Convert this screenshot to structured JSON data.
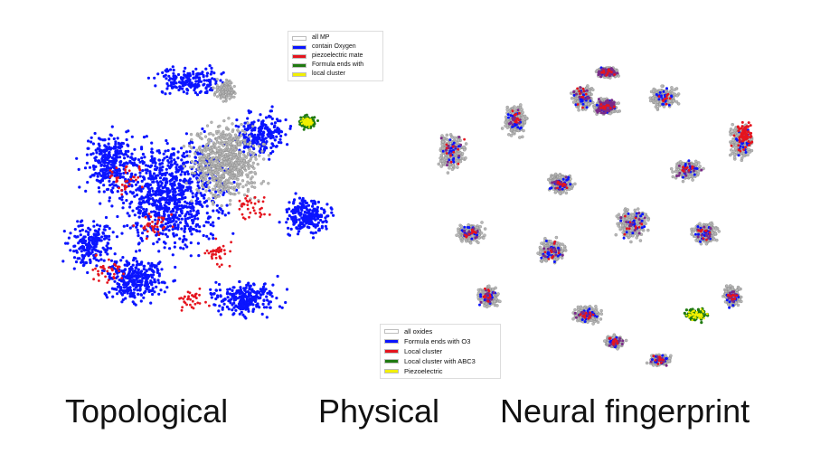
{
  "colors": {
    "grey": "#b8b8b8",
    "grey_edge": "#7a7a7a",
    "blue": "#0a14ff",
    "red": "#e5141e",
    "green": "#1f7a10",
    "yellow": "#f2f000",
    "purple": "#7a2a88",
    "white": "#ffffff"
  },
  "left_panel": {
    "legend": [
      {
        "label": "all MP",
        "color": "#ffffff"
      },
      {
        "label": "contain Oxygen",
        "color": "#0a14ff"
      },
      {
        "label": "piezoelectric mate",
        "color": "#e5141e"
      },
      {
        "label": "Formula ends with",
        "color": "#1f7a10"
      },
      {
        "label": "local cluster",
        "color": "#f2f000"
      }
    ]
  },
  "right_panel": {
    "legend": [
      {
        "label": "all oxides",
        "color": "#ffffff"
      },
      {
        "label": "Formula ends with O3",
        "color": "#0a14ff"
      },
      {
        "label": "Local cluster",
        "color": "#e5141e"
      },
      {
        "label": "Local cluster with ABC3",
        "color": "#1f7a10"
      },
      {
        "label": "Piezoelectric",
        "color": "#f2f000"
      }
    ]
  },
  "captions": {
    "topological": "Topological",
    "physical": "Physical",
    "neural": "Neural fingerprint"
  }
}
